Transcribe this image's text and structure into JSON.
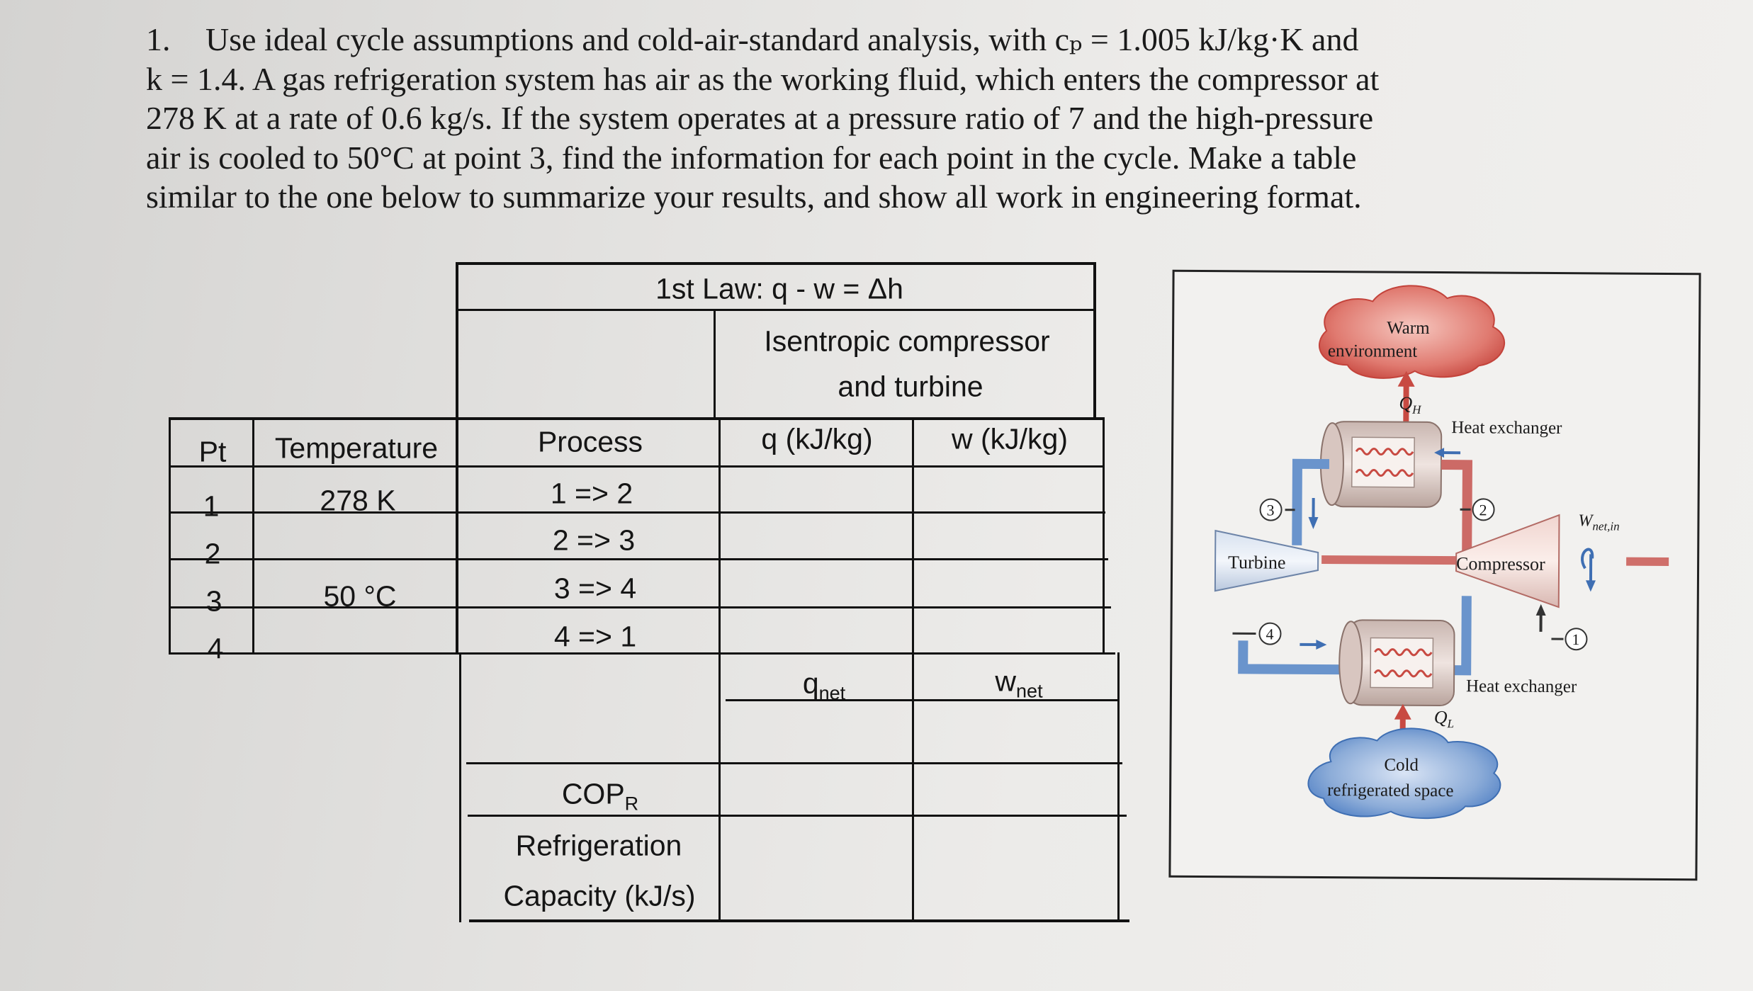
{
  "problem": {
    "number": "1.",
    "lines": [
      "Use ideal cycle assumptions and cold-air-standard analysis, with cₚ = 1.005 kJ/kg·K and",
      "k = 1.4. A gas refrigeration system has air as the working fluid, which enters the compressor at",
      "278 K at a rate of 0.6 kg/s. If the system operates at a pressure ratio of 7 and the high-pressure",
      "air is cooled to 50°C at point 3, find the information for each point in the cycle.  Make a table",
      "similar to the one below to summarize your results, and show all work in engineering format."
    ]
  },
  "table": {
    "first_law_title": "1st Law: q - w = Δh",
    "isentropic_line1": "Isentropic compressor",
    "isentropic_line2": "and turbine",
    "headers": {
      "pt": "Pt",
      "temperature": "Temperature",
      "process": "Process",
      "q": "q (kJ/kg)",
      "w": "w (kJ/kg)"
    },
    "rows": [
      {
        "pt": "1",
        "temperature": "278 K",
        "process": "1 => 2"
      },
      {
        "pt": "2",
        "temperature": "",
        "process": "2 => 3"
      },
      {
        "pt": "3",
        "temperature": "50 °C",
        "process": "3 => 4"
      },
      {
        "pt": "4",
        "temperature": "",
        "process": "4 => 1"
      }
    ],
    "qnet": {
      "base": "q",
      "sub": "net"
    },
    "wnet": {
      "base": "w",
      "sub": "net"
    },
    "cop": {
      "base": "COP",
      "sub": "R"
    },
    "refrigeration_line1": "Refrigeration",
    "refrigeration_line2": "Capacity (kJ/s)"
  },
  "diagram": {
    "warm_line1": "Warm",
    "warm_line2": "environment",
    "qh": {
      "base": "Q",
      "sub": "H"
    },
    "heat_exchanger_top": "Heat exchanger",
    "heat_exchanger_bottom": "Heat exchanger",
    "turbine": "Turbine",
    "compressor": "Compressor",
    "wnet_in": {
      "base": "W",
      "sub": "net,in"
    },
    "ql": {
      "base": "Q",
      "sub": "L"
    },
    "cold_line1": "Cold",
    "cold_line2": "refrigerated space",
    "points": [
      "1",
      "2",
      "3",
      "4"
    ],
    "colors": {
      "warm": "#d9534f",
      "cold": "#4f7fc4",
      "pipe_warm": "#cc5a5a",
      "pipe_cold": "#5b86c6"
    }
  }
}
